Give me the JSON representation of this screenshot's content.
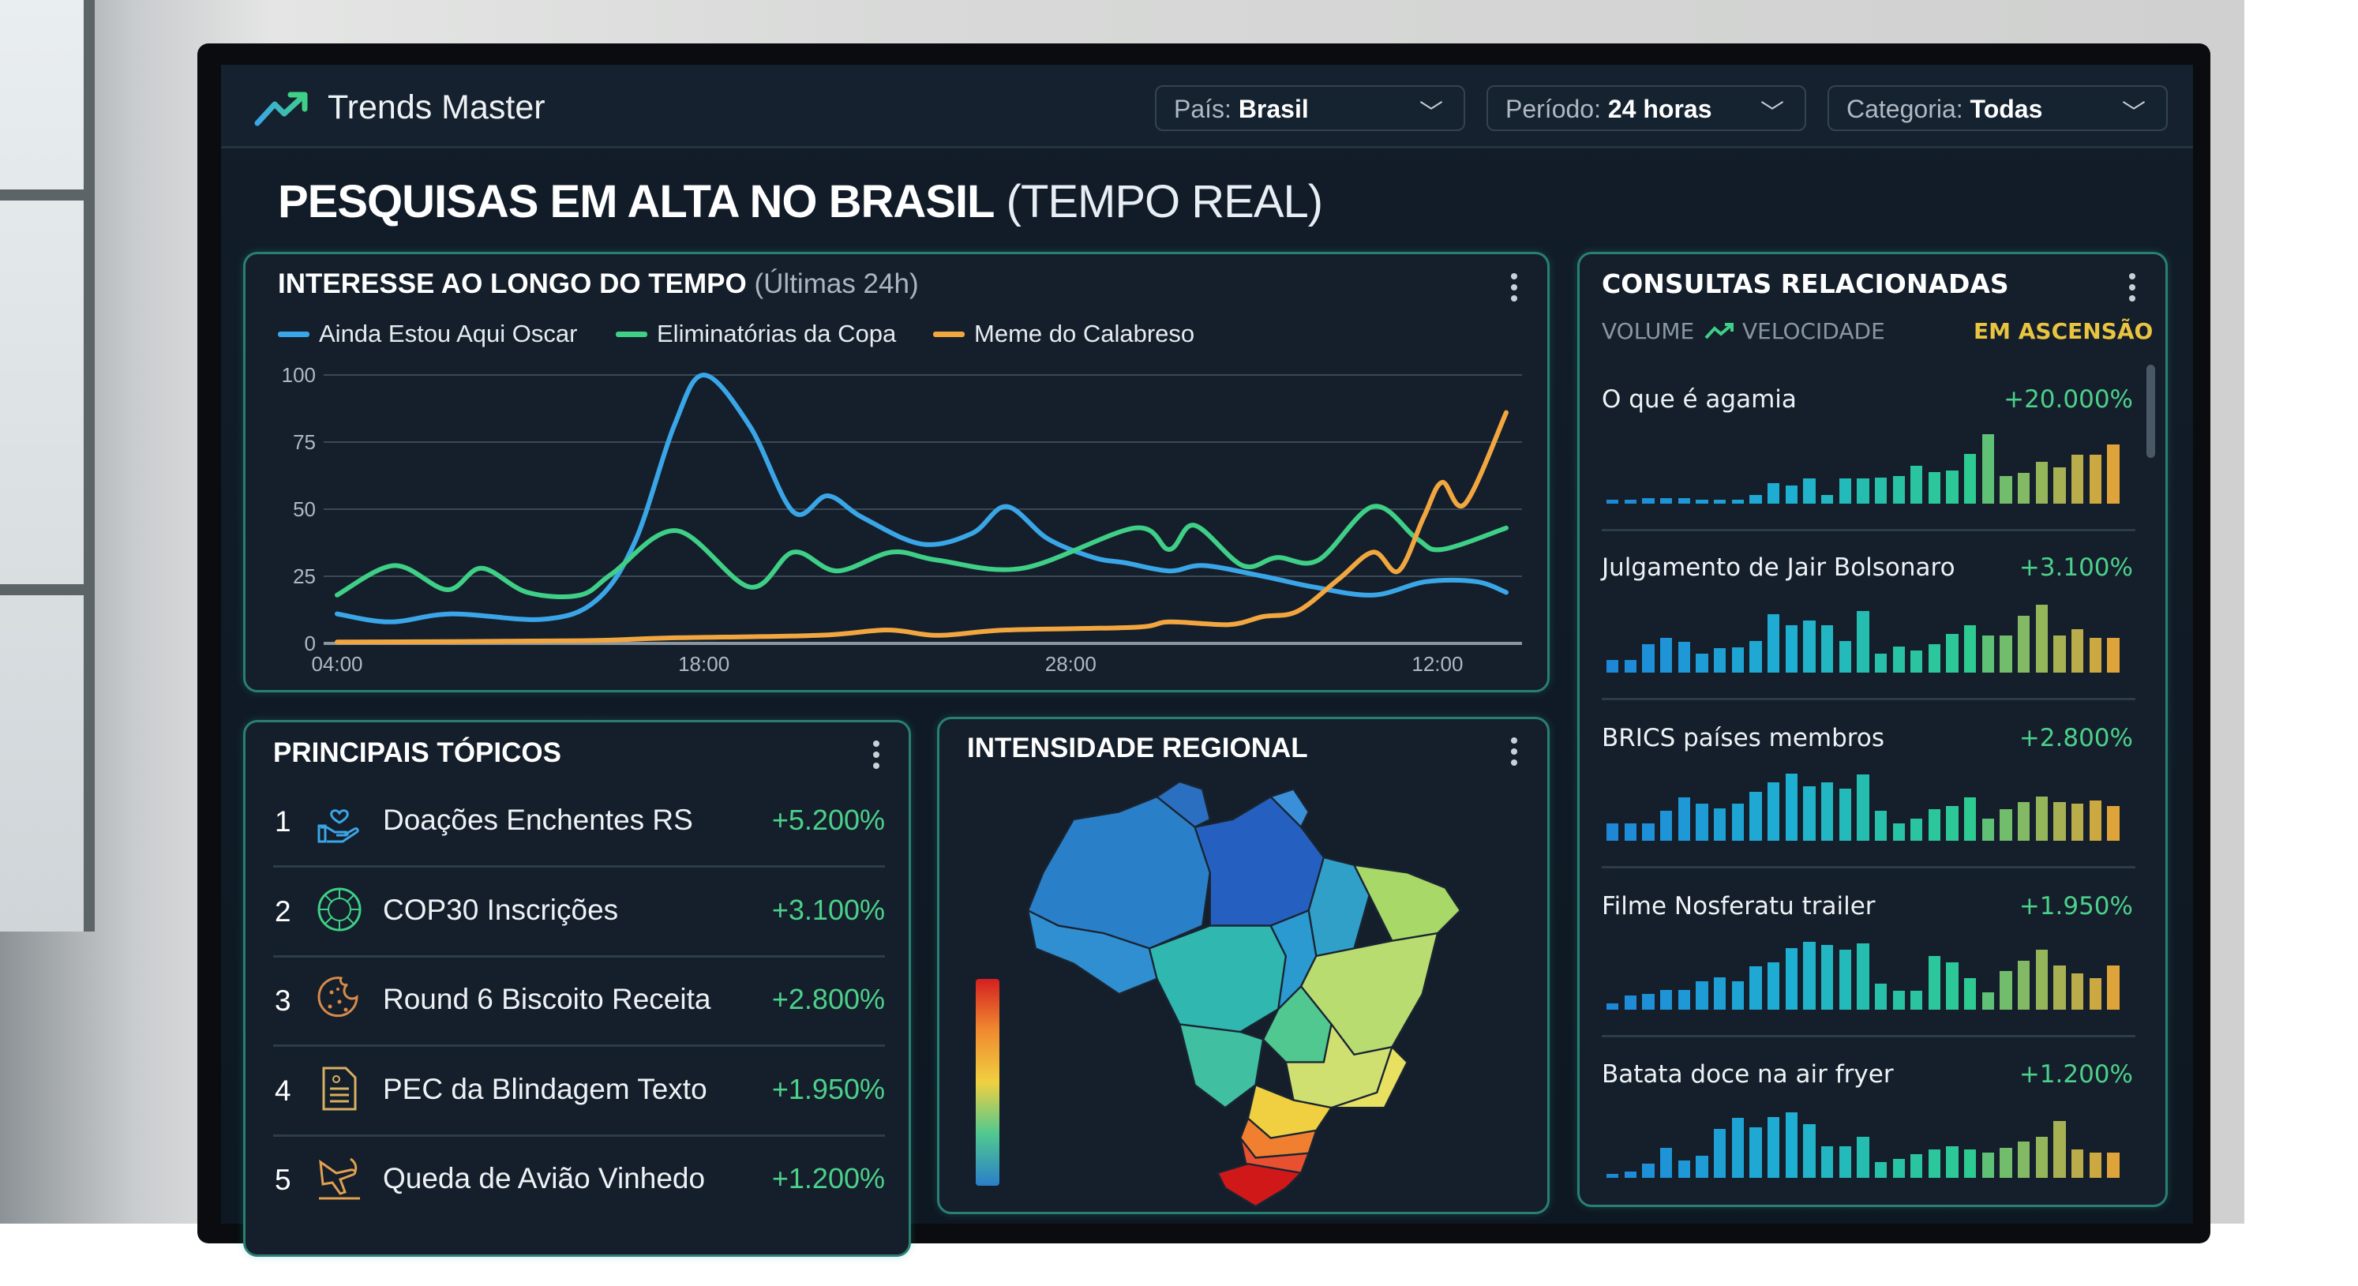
{
  "app": {
    "title": "Trends Master",
    "logo_icon": "trend-up-icon"
  },
  "filters": [
    {
      "label": "País:",
      "value": "Brasil"
    },
    {
      "label": "Período:",
      "value": "24 horas"
    },
    {
      "label": "Categoria:",
      "value": "Todas"
    }
  ],
  "page": {
    "title": "PESQUISAS EM ALTA NO BRASIL",
    "title_suffix": "(TEMPO REAL)"
  },
  "interest": {
    "title": "INTERESSE AO LONGO DO TEMPO",
    "subtitle": "(Últimas 24h)"
  },
  "chart_data": {
    "type": "line",
    "title": "INTERESSE AO LONGO DO TEMPO (Últimas 24h)",
    "ylim": [
      0,
      100
    ],
    "y_ticks": [
      0,
      25,
      50,
      75,
      100
    ],
    "x_ticks": [
      {
        "value": 0,
        "label": "04:00"
      },
      {
        "value": 16,
        "label": "18:00"
      },
      {
        "value": 32,
        "label": "28:00"
      },
      {
        "value": 48,
        "label": "12:00"
      }
    ],
    "grid": true,
    "legend": "top-left",
    "series": [
      {
        "name": "Ainda Estou Aqui Oscar",
        "color": "#3aa6e8",
        "points": [
          [
            0,
            11
          ],
          [
            2.3,
            8
          ],
          [
            5,
            11
          ],
          [
            9,
            9
          ],
          [
            11.3,
            16
          ],
          [
            13,
            38
          ],
          [
            14.7,
            81
          ],
          [
            16,
            100
          ],
          [
            18,
            81
          ],
          [
            19.9,
            49
          ],
          [
            21.4,
            55
          ],
          [
            22.9,
            47
          ],
          [
            25.5,
            37
          ],
          [
            27.7,
            41
          ],
          [
            29.2,
            51
          ],
          [
            31,
            39
          ],
          [
            33,
            32
          ],
          [
            34.4,
            30
          ],
          [
            36.3,
            27
          ],
          [
            37.8,
            29
          ],
          [
            40.4,
            25
          ],
          [
            42.6,
            21
          ],
          [
            45.2,
            18
          ],
          [
            47.5,
            23
          ],
          [
            49.7,
            23
          ],
          [
            51,
            19
          ]
        ]
      },
      {
        "name": "Eliminatórias da Copa",
        "color": "#3fcf86",
        "points": [
          [
            0,
            18
          ],
          [
            2.5,
            29
          ],
          [
            4.8,
            20
          ],
          [
            6.3,
            28
          ],
          [
            8.3,
            19
          ],
          [
            10.6,
            18
          ],
          [
            12,
            26
          ],
          [
            14.8,
            42
          ],
          [
            18,
            21
          ],
          [
            19.9,
            34
          ],
          [
            21.8,
            27
          ],
          [
            24.2,
            34
          ],
          [
            26.2,
            31
          ],
          [
            29.9,
            28
          ],
          [
            34.8,
            43
          ],
          [
            36.3,
            35
          ],
          [
            37.4,
            44
          ],
          [
            39.5,
            29
          ],
          [
            41,
            32
          ],
          [
            42.8,
            31
          ],
          [
            45.2,
            51
          ],
          [
            47.1,
            39
          ],
          [
            48.2,
            35
          ],
          [
            51,
            43
          ]
        ]
      },
      {
        "name": "Meme do Calabreso",
        "color": "#f2a640",
        "points": [
          [
            0,
            0.5
          ],
          [
            10.6,
            1
          ],
          [
            14.3,
            2
          ],
          [
            21,
            3
          ],
          [
            24,
            5
          ],
          [
            26.2,
            3
          ],
          [
            29.2,
            5
          ],
          [
            34.8,
            6
          ],
          [
            36.3,
            8
          ],
          [
            38.9,
            7
          ],
          [
            40.4,
            10
          ],
          [
            41.9,
            12
          ],
          [
            43.7,
            24
          ],
          [
            45.2,
            34
          ],
          [
            46.3,
            27
          ],
          [
            47.4,
            47
          ],
          [
            48.2,
            60
          ],
          [
            49.2,
            52
          ],
          [
            51,
            86
          ]
        ]
      }
    ]
  },
  "topics": {
    "title": "PRINCIPAIS TÓPICOS",
    "items": [
      {
        "rank": "1",
        "name": "Doações Enchentes RS",
        "change": "+5.200%",
        "icon": "heart-hand-icon",
        "color": "#3aa6e8"
      },
      {
        "rank": "2",
        "name": "COP30 Inscrições",
        "change": "+3.100%",
        "icon": "globe-leaf-icon",
        "color": "#3fcf86"
      },
      {
        "rank": "3",
        "name": "Round 6 Biscoito Receita",
        "change": "+2.800%",
        "icon": "cookie-icon",
        "color": "#d98a4a"
      },
      {
        "rank": "4",
        "name": "PEC da Blindagem Texto",
        "change": "+1.950%",
        "icon": "document-icon",
        "color": "#d9b060"
      },
      {
        "rank": "5",
        "name": "Queda de Avião Vinhedo",
        "change": "+1.200%",
        "icon": "plane-crash-icon",
        "color": "#e0a050"
      }
    ]
  },
  "regional": {
    "title": "INTENSIDADE REGIONAL",
    "scale_colors": [
      "#d42020",
      "#f08a30",
      "#f0d040",
      "#50c890",
      "#2a7fc9"
    ]
  },
  "related": {
    "title": "CONSULTAS RELACIONADAS",
    "tab_volume": "VOLUME",
    "tab_velocity": "VELOCIDADE",
    "rising": "EM ASCENSÃO",
    "rising_color": "#e8c440",
    "items": [
      {
        "name": "O que é agamia",
        "change": "+20.000%",
        "bars": [
          4,
          4,
          8,
          8,
          8,
          6,
          6,
          6,
          12,
          30,
          26,
          36,
          12,
          36,
          36,
          38,
          40,
          55,
          45,
          48,
          72,
          100,
          40,
          44,
          60,
          52,
          70,
          70,
          85
        ]
      },
      {
        "name": "Julgamento de Jair Bolsonaro",
        "change": "+3.100%",
        "bars": [
          18,
          18,
          41,
          50,
          44,
          27,
          35,
          36,
          45,
          84,
          68,
          75,
          68,
          45,
          89,
          27,
          38,
          32,
          41,
          56,
          68,
          53,
          53,
          82,
          98,
          53,
          62,
          50,
          50
        ]
      },
      {
        "name": "BRICS países membros",
        "change": "+2.800%",
        "bars": [
          25,
          25,
          25,
          43,
          62,
          53,
          47,
          53,
          71,
          84,
          97,
          79,
          84,
          75,
          95,
          43,
          25,
          32,
          45,
          50,
          62,
          32,
          45,
          56,
          64,
          56,
          53,
          58,
          50
        ]
      },
      {
        "name": "Filme Nosferatu trailer",
        "change": "+1.950%",
        "bars": [
          9,
          20,
          23,
          29,
          29,
          41,
          47,
          41,
          62,
          68,
          89,
          98,
          93,
          86,
          95,
          38,
          27,
          27,
          77,
          68,
          45,
          25,
          56,
          70,
          86,
          64,
          52,
          45,
          64
        ]
      },
      {
        "name": "Batata doce na air fryer",
        "change": "+1.200%",
        "bars": [
          6,
          9,
          21,
          43,
          25,
          32,
          70,
          86,
          73,
          88,
          94,
          77,
          45,
          45,
          59,
          23,
          27,
          34,
          41,
          45,
          41,
          36,
          43,
          52,
          59,
          82,
          41,
          36,
          36
        ]
      }
    ]
  }
}
